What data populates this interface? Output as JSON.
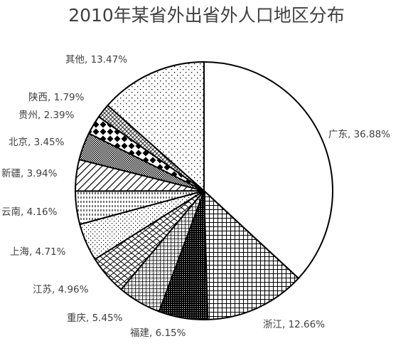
{
  "chart_data": {
    "type": "pie",
    "title": "2010年某省外出省外人口地区分布",
    "slices": [
      {
        "label": "广东",
        "value": 36.88,
        "display": "广东, 36.88%",
        "pattern": "blank"
      },
      {
        "label": "浙江",
        "value": 12.66,
        "display": "浙江, 12.66%",
        "pattern": "grid"
      },
      {
        "label": "福建",
        "value": 6.15,
        "display": "福建, 6.15%",
        "pattern": "dense-dots"
      },
      {
        "label": "重庆",
        "value": 5.45,
        "display": "重庆, 5.45%",
        "pattern": "small-grid"
      },
      {
        "label": "江苏",
        "value": 4.96,
        "display": "江苏, 4.96%",
        "pattern": "scales"
      },
      {
        "label": "上海",
        "value": 4.71,
        "display": "上海, 4.71%",
        "pattern": "diag-dots"
      },
      {
        "label": "云南",
        "value": 4.16,
        "display": "云南, 4.16%",
        "pattern": "dashed-vertical"
      },
      {
        "label": "新疆",
        "value": 3.94,
        "display": "新疆, 3.94%",
        "pattern": "diagonal-lines"
      },
      {
        "label": "北京",
        "value": 3.45,
        "display": "北京, 3.45%",
        "pattern": "tiny-checker"
      },
      {
        "label": "贵州",
        "value": 2.39,
        "display": "贵州, 2.39%",
        "pattern": "diamonds"
      },
      {
        "label": "陕西",
        "value": 1.79,
        "display": "陕西, 1.79%",
        "pattern": "cross-hatch"
      },
      {
        "label": "其他",
        "value": 13.47,
        "display": "其他, 13.47%",
        "pattern": "sparse-dots"
      }
    ]
  }
}
